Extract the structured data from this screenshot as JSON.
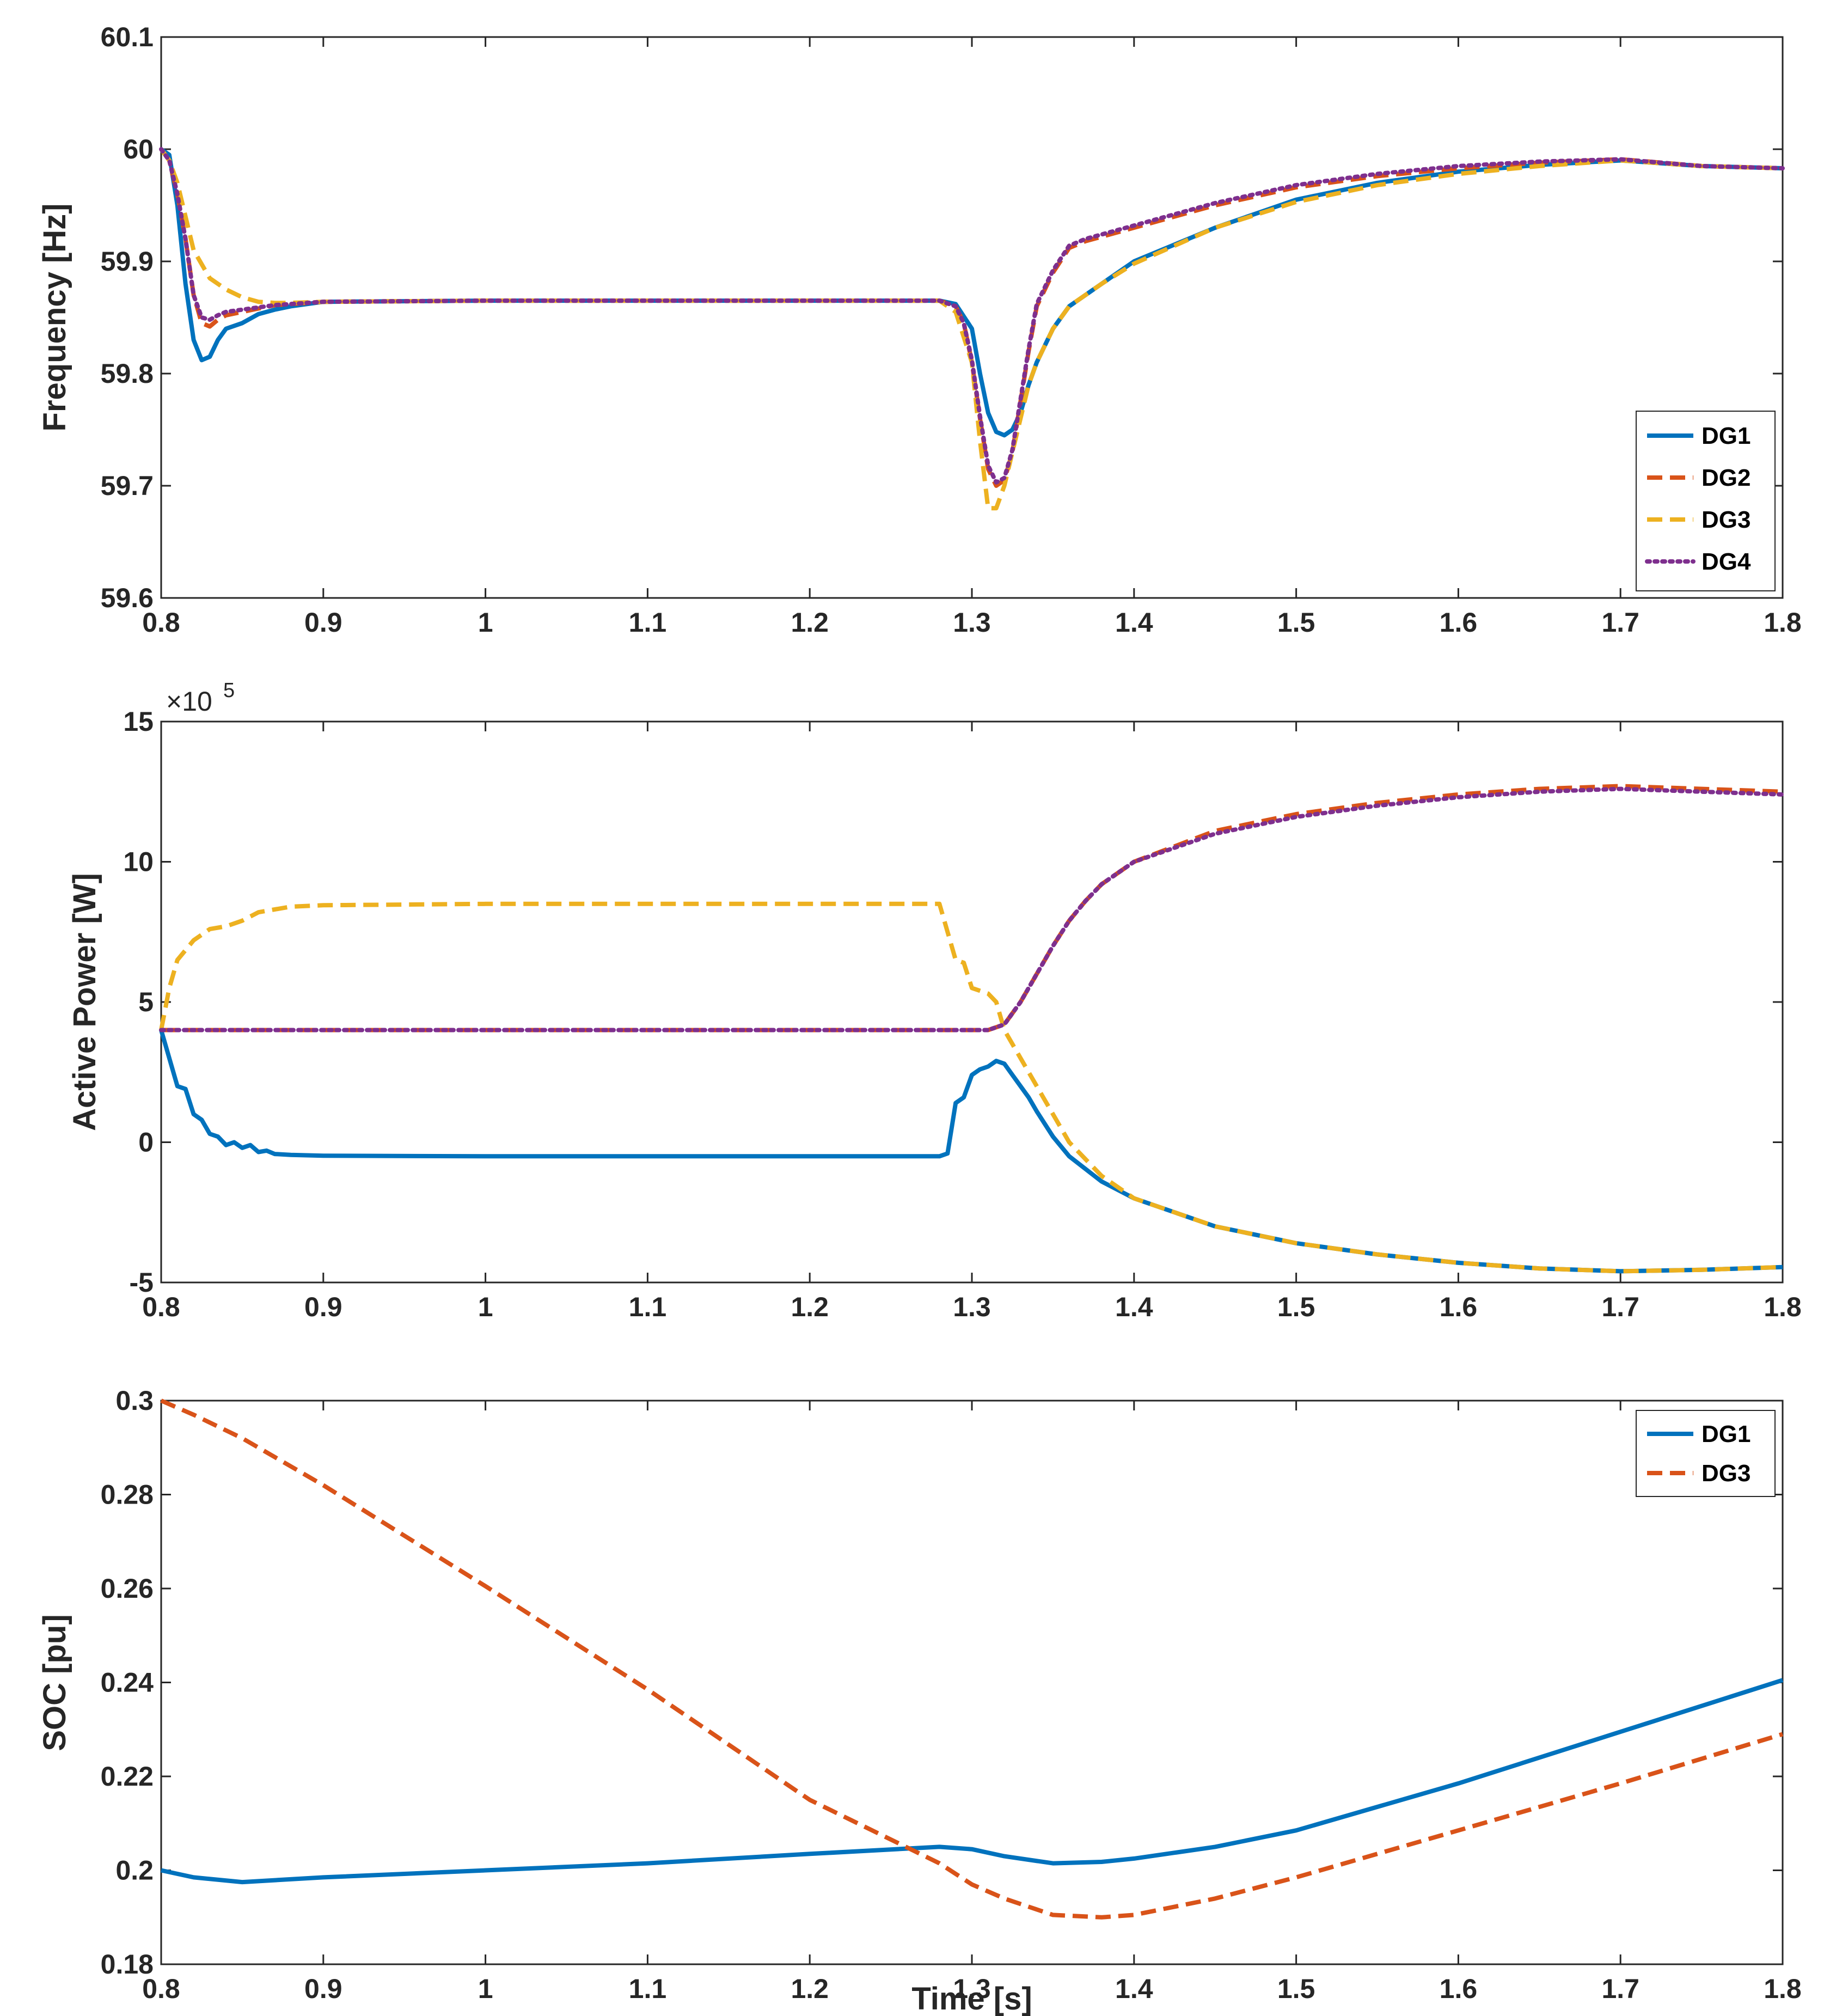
{
  "figure": {
    "xlabel": "Time [s]"
  },
  "chart_data": [
    {
      "type": "line",
      "id": "frequency",
      "ylabel": "Frequency [Hz]",
      "xlim": [
        0.8,
        1.8
      ],
      "ylim": [
        59.6,
        60.1
      ],
      "xticks": [
        "0.8",
        "0.9",
        "1",
        "1.1",
        "1.2",
        "1.3",
        "1.4",
        "1.5",
        "1.6",
        "1.7",
        "1.8"
      ],
      "yticks": [
        "59.6",
        "59.7",
        "59.8",
        "59.9",
        "60",
        "60.1"
      ],
      "legend_position": "bottom-right",
      "series": [
        {
          "name": "DG1",
          "color": "#0072BD",
          "style": "solid",
          "x": [
            0.8,
            0.805,
            0.81,
            0.815,
            0.82,
            0.825,
            0.83,
            0.835,
            0.84,
            0.85,
            0.86,
            0.87,
            0.88,
            0.9,
            1.0,
            1.1,
            1.2,
            1.28,
            1.29,
            1.3,
            1.305,
            1.31,
            1.315,
            1.32,
            1.325,
            1.33,
            1.335,
            1.34,
            1.35,
            1.36,
            1.38,
            1.4,
            1.45,
            1.5,
            1.55,
            1.6,
            1.65,
            1.7,
            1.75,
            1.8
          ],
          "y": [
            60.0,
            59.995,
            59.95,
            59.88,
            59.83,
            59.812,
            59.815,
            59.83,
            59.84,
            59.845,
            59.853,
            59.857,
            59.86,
            59.864,
            59.865,
            59.865,
            59.865,
            59.865,
            59.862,
            59.84,
            59.8,
            59.765,
            59.748,
            59.745,
            59.75,
            59.765,
            59.79,
            59.81,
            59.84,
            59.86,
            59.88,
            59.9,
            59.93,
            59.955,
            59.97,
            59.98,
            59.986,
            59.99,
            59.985,
            59.983
          ]
        },
        {
          "name": "DG2",
          "color": "#D95319",
          "style": "dashed",
          "x": [
            0.8,
            0.805,
            0.81,
            0.815,
            0.82,
            0.825,
            0.83,
            0.835,
            0.84,
            0.85,
            0.86,
            0.87,
            0.88,
            0.9,
            1.0,
            1.1,
            1.2,
            1.28,
            1.29,
            1.295,
            1.3,
            1.305,
            1.31,
            1.315,
            1.32,
            1.325,
            1.33,
            1.335,
            1.34,
            1.35,
            1.36,
            1.37,
            1.38,
            1.4,
            1.45,
            1.5,
            1.55,
            1.6,
            1.65,
            1.7,
            1.75,
            1.8
          ],
          "y": [
            60.0,
            59.99,
            59.96,
            59.92,
            59.87,
            59.845,
            59.842,
            59.848,
            59.852,
            59.855,
            59.858,
            59.861,
            59.862,
            59.864,
            59.865,
            59.865,
            59.865,
            59.865,
            59.86,
            59.845,
            59.81,
            59.76,
            59.715,
            59.7,
            59.705,
            59.73,
            59.775,
            59.82,
            59.86,
            59.89,
            59.912,
            59.918,
            59.922,
            59.93,
            59.95,
            59.966,
            59.976,
            59.983,
            59.988,
            59.991,
            59.985,
            59.983
          ]
        },
        {
          "name": "DG3",
          "color": "#EDB120",
          "style": "dashed",
          "x": [
            0.8,
            0.805,
            0.81,
            0.815,
            0.82,
            0.83,
            0.84,
            0.85,
            0.86,
            0.87,
            0.88,
            0.9,
            1.0,
            1.1,
            1.2,
            1.28,
            1.29,
            1.3,
            1.305,
            1.31,
            1.315,
            1.32,
            1.325,
            1.33,
            1.335,
            1.34,
            1.35,
            1.36,
            1.38,
            1.4,
            1.45,
            1.5,
            1.55,
            1.6,
            1.65,
            1.7,
            1.75,
            1.8
          ],
          "y": [
            60.0,
            59.99,
            59.97,
            59.94,
            59.91,
            59.885,
            59.875,
            59.868,
            59.864,
            59.863,
            59.863,
            59.864,
            59.865,
            59.865,
            59.865,
            59.865,
            59.855,
            59.81,
            59.74,
            59.68,
            59.68,
            59.7,
            59.73,
            59.76,
            59.79,
            59.81,
            59.84,
            59.86,
            59.88,
            59.898,
            59.93,
            59.953,
            59.968,
            59.978,
            59.985,
            59.99,
            59.985,
            59.983
          ]
        },
        {
          "name": "DG4",
          "color": "#7E2F8E",
          "style": "dotted",
          "x": [
            0.8,
            0.805,
            0.81,
            0.815,
            0.82,
            0.825,
            0.83,
            0.835,
            0.84,
            0.85,
            0.86,
            0.87,
            0.88,
            0.9,
            1.0,
            1.1,
            1.2,
            1.28,
            1.29,
            1.295,
            1.3,
            1.305,
            1.31,
            1.315,
            1.32,
            1.325,
            1.33,
            1.335,
            1.34,
            1.35,
            1.36,
            1.37,
            1.38,
            1.4,
            1.45,
            1.5,
            1.55,
            1.6,
            1.65,
            1.7,
            1.75,
            1.8
          ],
          "y": [
            60.0,
            59.99,
            59.96,
            59.92,
            59.87,
            59.85,
            59.848,
            59.852,
            59.855,
            59.857,
            59.859,
            59.861,
            59.862,
            59.864,
            59.865,
            59.865,
            59.865,
            59.865,
            59.86,
            59.845,
            59.812,
            59.762,
            59.718,
            59.703,
            59.707,
            59.732,
            59.777,
            59.822,
            59.862,
            59.892,
            59.914,
            59.92,
            59.924,
            59.932,
            59.952,
            59.968,
            59.978,
            59.985,
            59.989,
            59.991,
            59.985,
            59.983
          ]
        }
      ]
    },
    {
      "type": "line",
      "id": "power",
      "ylabel": "Active Power [W]",
      "exponent": "×10",
      "exponent_power": "5",
      "xlim": [
        0.8,
        1.8
      ],
      "ylim": [
        -5,
        15
      ],
      "xticks": [
        "0.8",
        "0.9",
        "1",
        "1.1",
        "1.2",
        "1.3",
        "1.4",
        "1.5",
        "1.6",
        "1.7",
        "1.8"
      ],
      "yticks": [
        "-5",
        "0",
        "5",
        "10",
        "15"
      ],
      "series": [
        {
          "name": "DG1",
          "color": "#0072BD",
          "style": "solid",
          "x": [
            0.8,
            0.805,
            0.81,
            0.815,
            0.82,
            0.825,
            0.83,
            0.835,
            0.84,
            0.845,
            0.85,
            0.855,
            0.86,
            0.865,
            0.87,
            0.88,
            0.9,
            1.0,
            1.1,
            1.2,
            1.28,
            1.285,
            1.29,
            1.295,
            1.3,
            1.305,
            1.31,
            1.315,
            1.32,
            1.325,
            1.33,
            1.335,
            1.34,
            1.35,
            1.36,
            1.38,
            1.4,
            1.45,
            1.5,
            1.55,
            1.6,
            1.65,
            1.7,
            1.75,
            1.8
          ],
          "y": [
            4.0,
            3.0,
            2.0,
            1.9,
            1.0,
            0.8,
            0.3,
            0.2,
            -0.1,
            0.0,
            -0.2,
            -0.1,
            -0.35,
            -0.3,
            -0.42,
            -0.45,
            -0.48,
            -0.5,
            -0.5,
            -0.5,
            -0.5,
            -0.4,
            1.4,
            1.6,
            2.4,
            2.6,
            2.7,
            2.9,
            2.8,
            2.4,
            2.0,
            1.6,
            1.1,
            0.2,
            -0.5,
            -1.4,
            -2.0,
            -3.0,
            -3.6,
            -4.0,
            -4.3,
            -4.5,
            -4.6,
            -4.55,
            -4.45
          ]
        },
        {
          "name": "DG2",
          "color": "#D95319",
          "style": "dashed",
          "x": [
            0.8,
            0.9,
            1.0,
            1.1,
            1.2,
            1.3,
            1.31,
            1.32,
            1.33,
            1.34,
            1.35,
            1.36,
            1.37,
            1.38,
            1.4,
            1.45,
            1.5,
            1.55,
            1.6,
            1.65,
            1.7,
            1.75,
            1.8
          ],
          "y": [
            4.0,
            4.0,
            4.0,
            4.0,
            4.0,
            4.0,
            4.0,
            4.2,
            5.0,
            6.0,
            7.0,
            7.9,
            8.6,
            9.2,
            10.0,
            11.1,
            11.7,
            12.1,
            12.4,
            12.6,
            12.7,
            12.6,
            12.5
          ]
        },
        {
          "name": "DG3",
          "color": "#EDB120",
          "style": "dashed",
          "x": [
            0.8,
            0.805,
            0.81,
            0.82,
            0.83,
            0.84,
            0.85,
            0.86,
            0.87,
            0.88,
            0.9,
            1.0,
            1.1,
            1.2,
            1.28,
            1.285,
            1.29,
            1.295,
            1.3,
            1.31,
            1.315,
            1.32,
            1.33,
            1.34,
            1.35,
            1.36,
            1.38,
            1.4,
            1.45,
            1.5,
            1.55,
            1.6,
            1.65,
            1.7,
            1.75,
            1.8
          ],
          "y": [
            4.0,
            5.5,
            6.5,
            7.2,
            7.6,
            7.7,
            7.9,
            8.2,
            8.3,
            8.4,
            8.45,
            8.5,
            8.5,
            8.5,
            8.5,
            7.5,
            6.5,
            6.4,
            5.5,
            5.3,
            5.0,
            4.0,
            3.0,
            2.0,
            1.0,
            0.0,
            -1.2,
            -2.0,
            -3.0,
            -3.6,
            -4.0,
            -4.3,
            -4.5,
            -4.6,
            -4.55,
            -4.45
          ]
        },
        {
          "name": "DG4",
          "color": "#7E2F8E",
          "style": "dotted",
          "x": [
            0.8,
            0.9,
            1.0,
            1.1,
            1.2,
            1.3,
            1.31,
            1.32,
            1.33,
            1.34,
            1.35,
            1.36,
            1.37,
            1.38,
            1.4,
            1.45,
            1.5,
            1.55,
            1.6,
            1.65,
            1.7,
            1.75,
            1.8
          ],
          "y": [
            4.0,
            4.0,
            4.0,
            4.0,
            4.0,
            4.0,
            4.0,
            4.2,
            5.0,
            6.0,
            7.0,
            7.9,
            8.6,
            9.2,
            10.0,
            11.0,
            11.6,
            12.0,
            12.3,
            12.5,
            12.6,
            12.5,
            12.4
          ]
        }
      ]
    },
    {
      "type": "line",
      "id": "soc",
      "ylabel": "SOC [pu]",
      "xlim": [
        0.8,
        1.8
      ],
      "ylim": [
        0.18,
        0.3
      ],
      "xticks": [
        "0.8",
        "0.9",
        "1",
        "1.1",
        "1.2",
        "1.3",
        "1.4",
        "1.5",
        "1.6",
        "1.7",
        "1.8"
      ],
      "yticks": [
        "0.18",
        "0.2",
        "0.22",
        "0.24",
        "0.26",
        "0.28",
        "0.3"
      ],
      "legend_position": "top-right",
      "series": [
        {
          "name": "DG1",
          "color": "#0072BD",
          "style": "solid",
          "x": [
            0.8,
            0.82,
            0.85,
            0.9,
            1.0,
            1.1,
            1.2,
            1.28,
            1.3,
            1.32,
            1.35,
            1.38,
            1.4,
            1.45,
            1.5,
            1.6,
            1.7,
            1.8
          ],
          "y": [
            0.2,
            0.1985,
            0.1975,
            0.1985,
            0.2,
            0.2015,
            0.2035,
            0.205,
            0.2045,
            0.203,
            0.2015,
            0.2018,
            0.2025,
            0.205,
            0.2085,
            0.2185,
            0.2295,
            0.2405
          ]
        },
        {
          "name": "DG3",
          "color": "#D95319",
          "style": "dashed",
          "x": [
            0.8,
            0.82,
            0.85,
            0.9,
            1.0,
            1.1,
            1.2,
            1.28,
            1.3,
            1.32,
            1.35,
            1.38,
            1.4,
            1.45,
            1.5,
            1.6,
            1.7,
            1.8
          ],
          "y": [
            0.3,
            0.297,
            0.292,
            0.282,
            0.2605,
            0.2385,
            0.215,
            0.2015,
            0.197,
            0.194,
            0.1905,
            0.19,
            0.1905,
            0.194,
            0.1985,
            0.2085,
            0.2185,
            0.229
          ]
        }
      ]
    }
  ]
}
